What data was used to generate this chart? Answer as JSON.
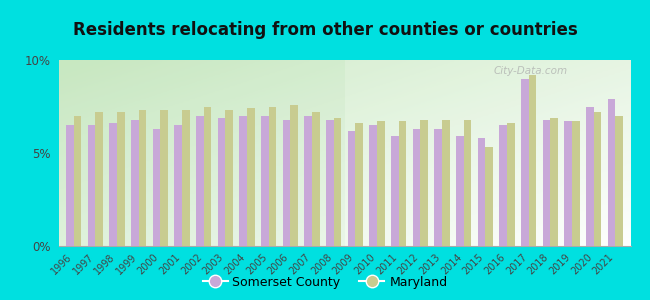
{
  "title": "Residents relocating from other counties or countries",
  "years": [
    1996,
    1997,
    1998,
    1999,
    2000,
    2001,
    2002,
    2003,
    2004,
    2005,
    2006,
    2007,
    2008,
    2009,
    2010,
    2011,
    2012,
    2013,
    2014,
    2015,
    2016,
    2017,
    2018,
    2019,
    2020,
    2021
  ],
  "somerset": [
    6.5,
    6.5,
    6.6,
    6.8,
    6.3,
    6.5,
    7.0,
    6.9,
    7.0,
    7.0,
    6.8,
    7.0,
    6.8,
    6.2,
    6.5,
    5.9,
    6.3,
    6.3,
    5.9,
    5.8,
    6.5,
    9.0,
    6.8,
    6.7,
    7.5,
    7.9
  ],
  "maryland": [
    7.0,
    7.2,
    7.2,
    7.3,
    7.3,
    7.3,
    7.5,
    7.3,
    7.4,
    7.5,
    7.6,
    7.2,
    6.9,
    6.6,
    6.7,
    6.7,
    6.8,
    6.8,
    6.8,
    5.3,
    6.6,
    9.2,
    6.9,
    6.7,
    7.2,
    7.0
  ],
  "somerset_color": "#c8a8d8",
  "maryland_color": "#c8cc90",
  "background_color_top": "#f0f8f0",
  "background_color_bottom": "#d8eed8",
  "outer_background": "#00e0e0",
  "ylim": [
    0,
    10
  ],
  "yticks": [
    0,
    5,
    10
  ],
  "ytick_labels": [
    "0%",
    "5%",
    "10%"
  ],
  "legend_somerset": "Somerset County",
  "legend_maryland": "Maryland",
  "title_fontsize": 12,
  "bar_width": 0.35
}
